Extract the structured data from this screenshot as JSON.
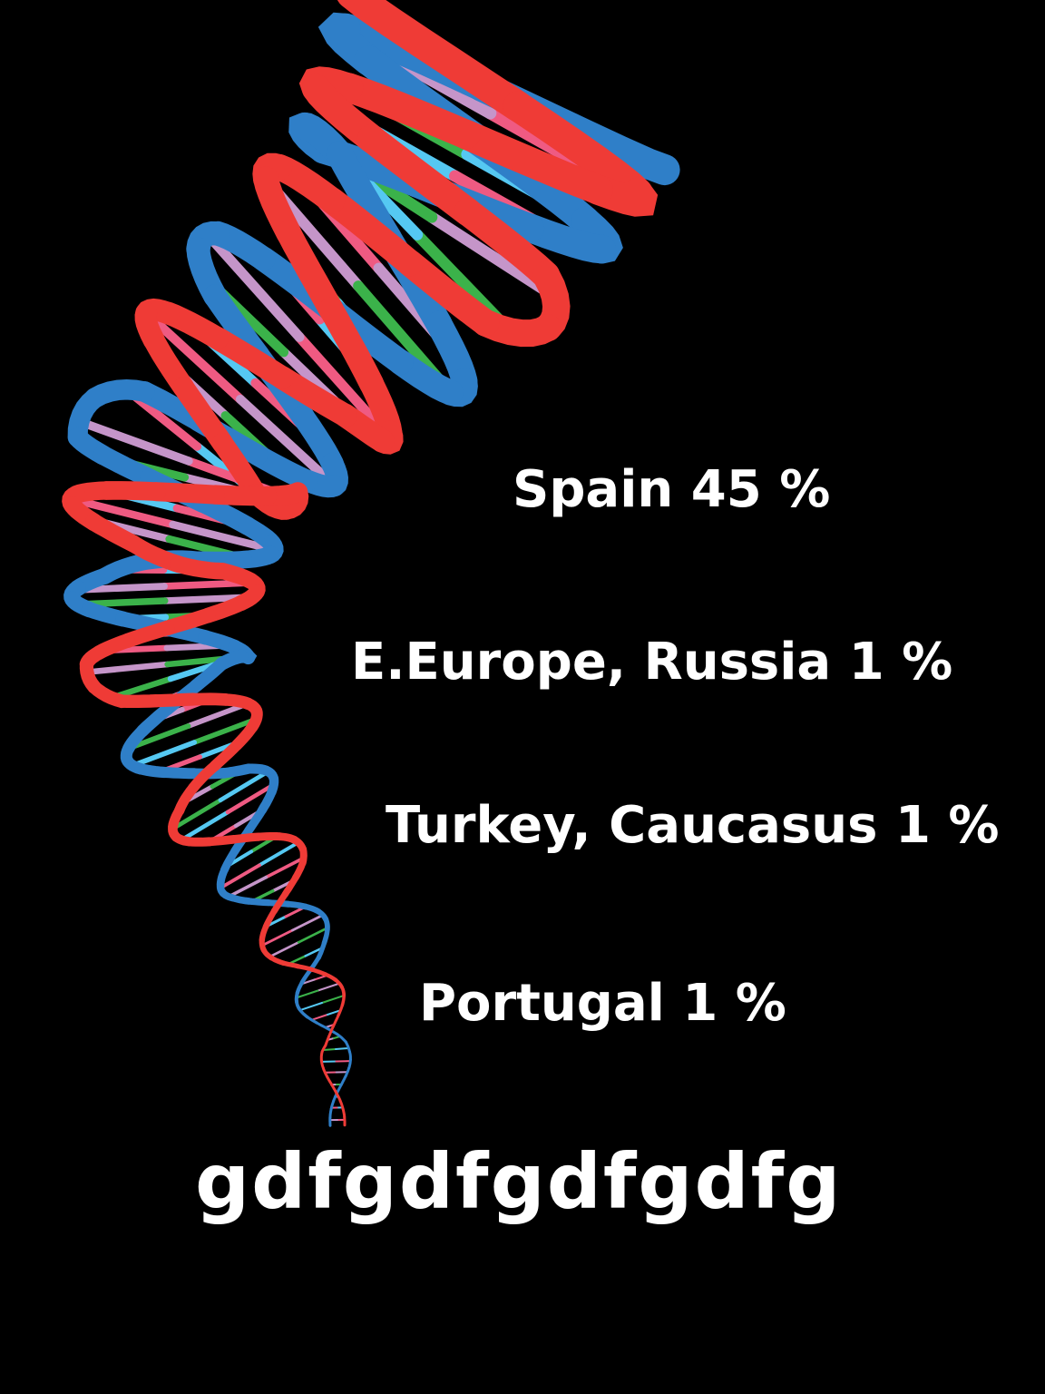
{
  "regions": [
    {
      "label": "Spain 45 %"
    },
    {
      "label": "E.Europe, Russia 1 %"
    },
    {
      "label": "Turkey, Caucasus 1 %"
    },
    {
      "label": "Portugal 1 %"
    }
  ],
  "footer_code": "gdfgdfgdfgdfg",
  "graphic": {
    "icon": "dna-helix-icon",
    "colors": {
      "background": "#000000",
      "strand_red": "#ef3b36",
      "strand_blue": "#2f7fc8",
      "rung_cyan": "#55c8f2",
      "rung_pink": "#ef5a82",
      "rung_lilac": "#c595c9",
      "rung_green": "#3bb24a",
      "text": "#ffffff"
    }
  }
}
